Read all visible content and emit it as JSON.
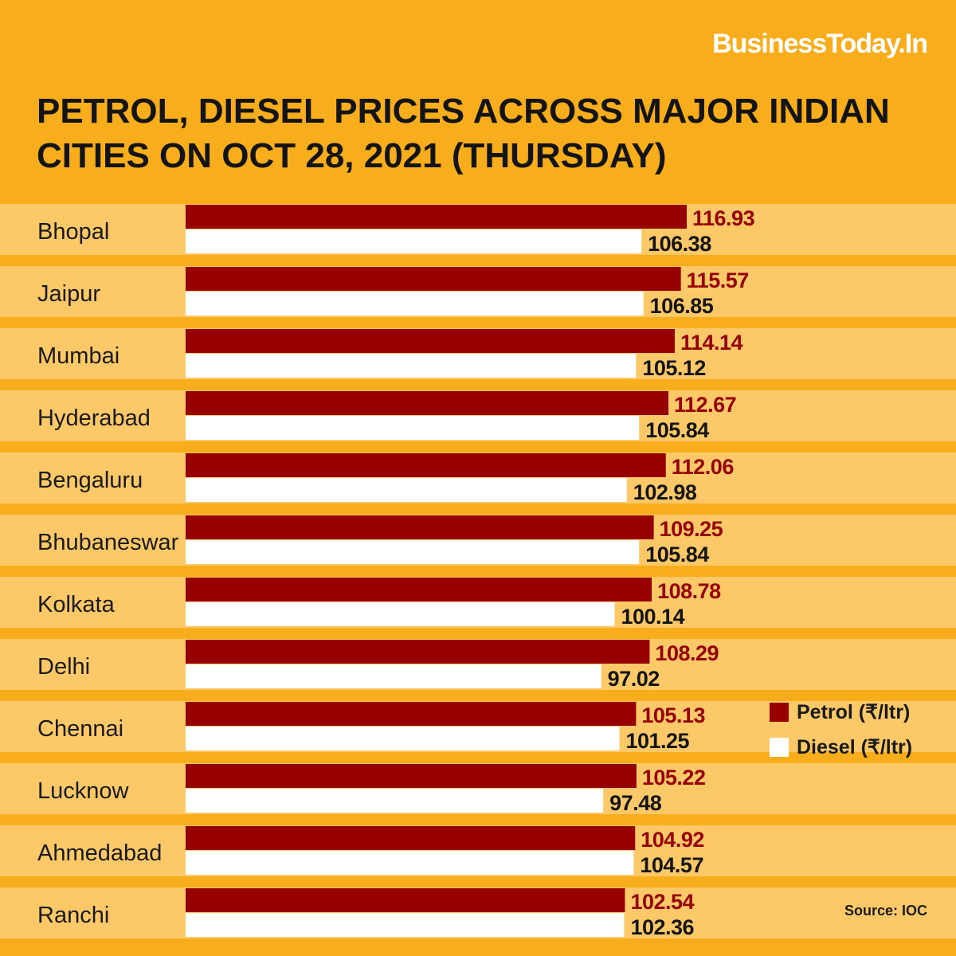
{
  "brand": "BusinessToday.In",
  "source": "Source: IOC",
  "colors": {
    "background": "#f8ad1d",
    "row_band": "#fcc868",
    "petrol": "#960000",
    "diesel": "#ffffff",
    "petrol_label": "#960000",
    "diesel_label": "#141414"
  },
  "legend": {
    "petrol": "Petrol (₹/ltr)",
    "diesel": "Diesel (₹/ltr)"
  },
  "chart_data": {
    "type": "bar",
    "orientation": "horizontal",
    "title": "PETROL, DIESEL PRICES ACROSS MAJOR INDIAN CITIES ON OCT 28, 2021 (THURSDAY)",
    "categories": [
      "Bhopal",
      "Jaipur",
      "Mumbai",
      "Hyderabad",
      "Bengaluru",
      "Bhubaneswar",
      "Kolkata",
      "Delhi",
      "Chennai",
      "Lucknow",
      "Ahmedabad",
      "Ranchi"
    ],
    "series": [
      {
        "name": "Petrol (₹/ltr)",
        "values": [
          116.93,
          115.57,
          114.14,
          112.67,
          112.06,
          109.25,
          108.78,
          108.29,
          105.13,
          105.22,
          104.92,
          102.54
        ],
        "labels": [
          "116.93",
          "115.57",
          "114.14",
          "112.67",
          "112.06",
          "109.25",
          "108.78",
          "108.29",
          "105.13",
          "105.22",
          "104.92",
          "102.54"
        ]
      },
      {
        "name": "Diesel (₹/ltr)",
        "values": [
          106.38,
          106.85,
          105.12,
          105.84,
          102.98,
          105.84,
          100.14,
          97.02,
          101.25,
          97.48,
          104.57,
          102.36
        ],
        "labels": [
          "106.38",
          "106.85",
          "105.12",
          "105.84",
          "102.98",
          "105.84",
          "100.14",
          "97.02",
          "101.25",
          "97.48",
          "104.57",
          "102.36"
        ]
      }
    ],
    "legend_position": "right",
    "grid": false
  }
}
